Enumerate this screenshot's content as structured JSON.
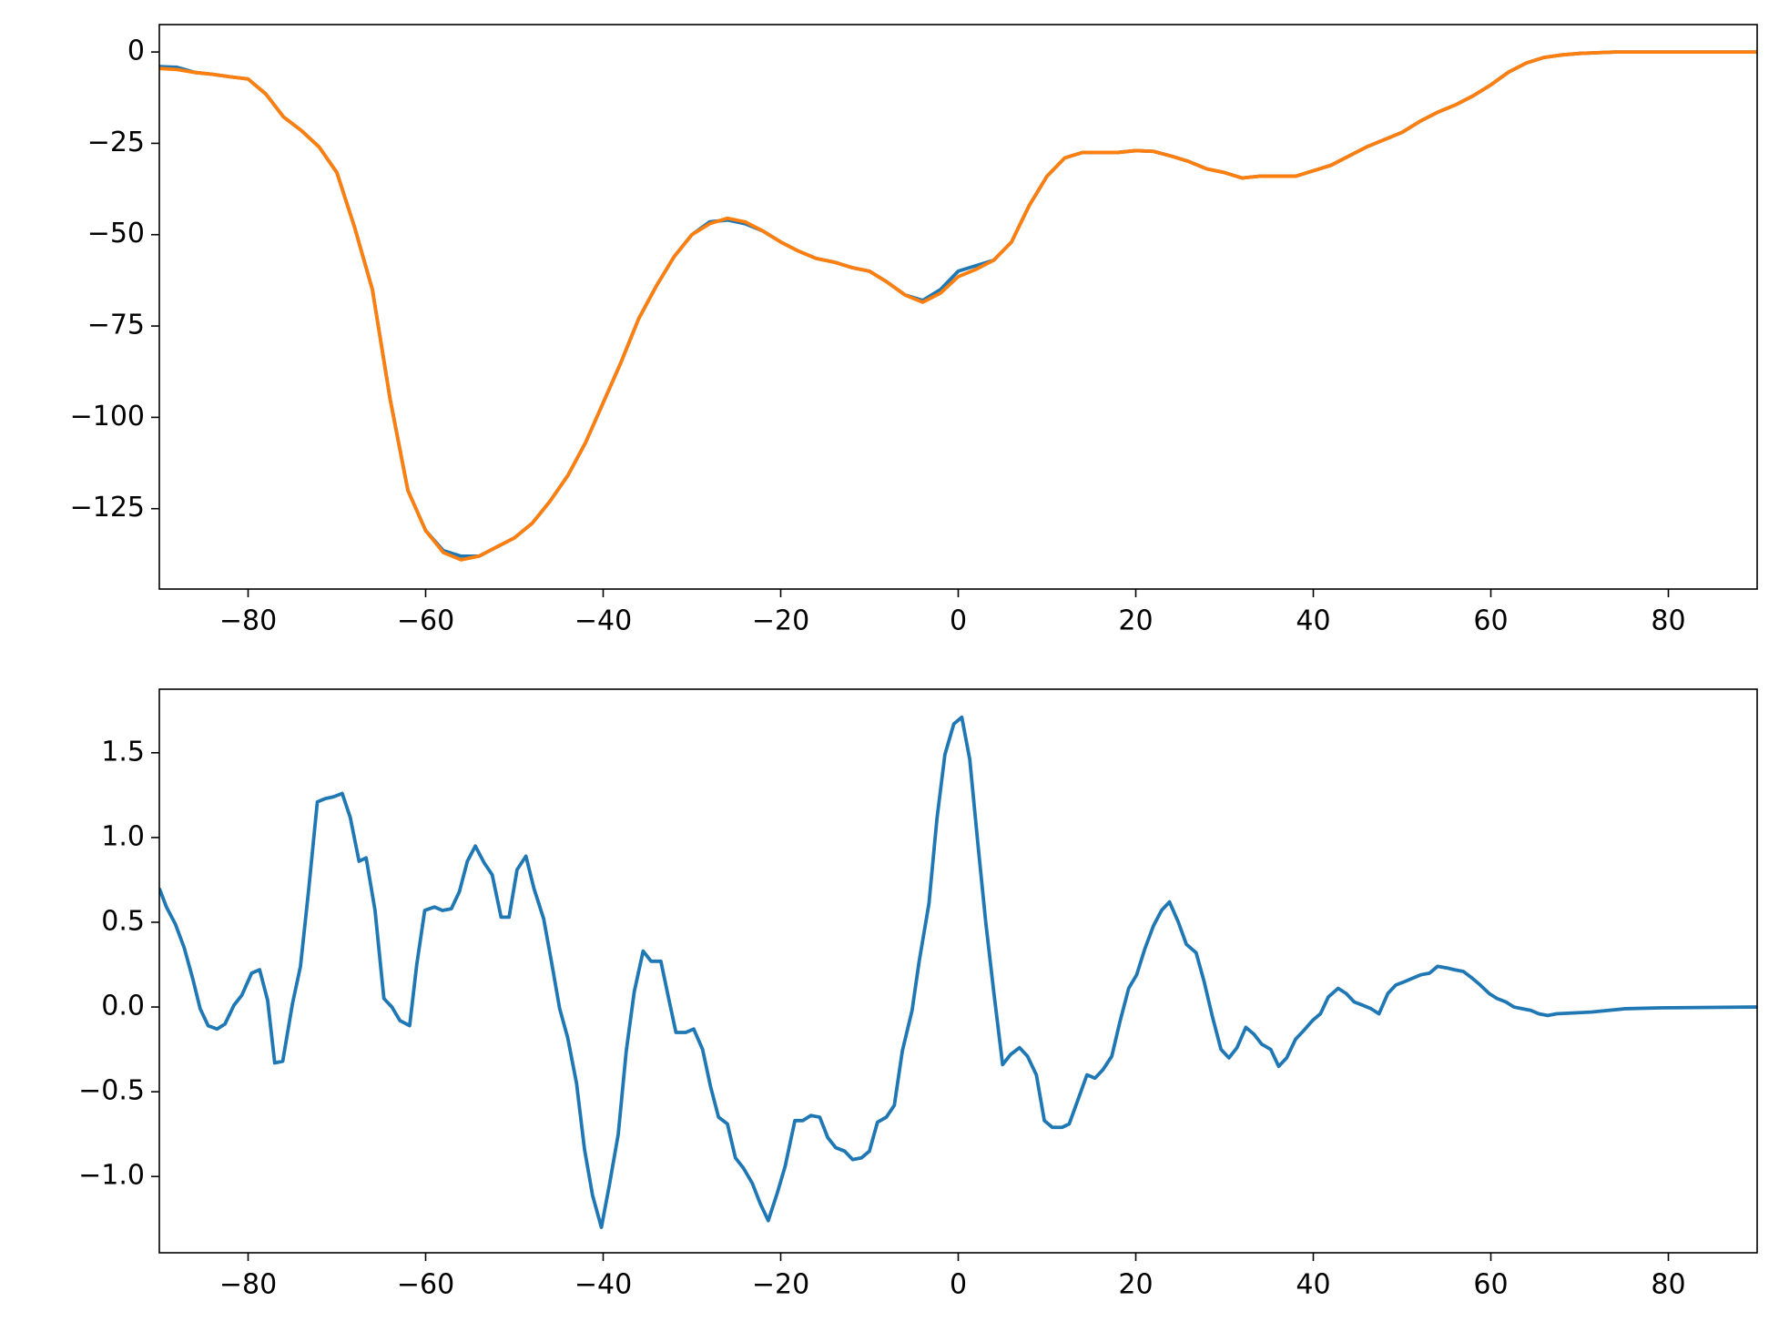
{
  "chart_data": [
    {
      "type": "line",
      "x": [
        -90,
        -88,
        -86,
        -84,
        -82,
        -80,
        -78,
        -76,
        -74,
        -72,
        -70,
        -68,
        -66,
        -64,
        -62,
        -60,
        -58,
        -56,
        -54,
        -52,
        -50,
        -48,
        -46,
        -44,
        -42,
        -40,
        -38,
        -36,
        -34,
        -32,
        -30,
        -28,
        -26,
        -24,
        -22,
        -20,
        -18,
        -16,
        -14,
        -12,
        -10,
        -8,
        -6,
        -4,
        -2,
        0,
        2,
        4,
        6,
        8,
        10,
        12,
        14,
        16,
        18,
        20,
        22,
        24,
        26,
        28,
        30,
        32,
        34,
        36,
        38,
        40,
        42,
        44,
        46,
        48,
        50,
        52,
        54,
        56,
        58,
        60,
        62,
        64,
        66,
        68,
        70,
        72,
        74,
        76,
        78,
        80,
        82,
        84,
        86,
        88,
        90
      ],
      "series": [
        {
          "color": "#1f77b4",
          "values": [
            -4,
            -4.2,
            -5.6,
            -6.1,
            -6.8,
            -7.4,
            -11.5,
            -17.8,
            -21.5,
            -26,
            -33,
            -48,
            -65,
            -95,
            -120,
            -131,
            -136.5,
            -138,
            -138,
            -135.5,
            -133,
            -129,
            -123,
            -116,
            -107,
            -96,
            -85,
            -73,
            -64,
            -56,
            -50,
            -46.5,
            -46,
            -47,
            -49,
            -52,
            -54.5,
            -56.5,
            -57.5,
            -59,
            -60,
            -63,
            -66.5,
            -68,
            -65,
            -60,
            -58.5,
            -57,
            -52,
            -42,
            -34,
            -29,
            -27.5,
            -27.5,
            -27.5,
            -27,
            -27.2,
            -28.5,
            -30,
            -32,
            -33,
            -34.5,
            -34,
            -34,
            -34,
            -32.5,
            -31,
            -28.5,
            -26,
            -24,
            -22,
            -19,
            -16.5,
            -14.5,
            -12,
            -9,
            -5.5,
            -3,
            -1.5,
            -0.8,
            -0.4,
            -0.2,
            0,
            0,
            0,
            0,
            0,
            0,
            0,
            0,
            0
          ]
        },
        {
          "color": "#ff7f0e",
          "values": [
            -4.5,
            -4.8,
            -5.6,
            -6.1,
            -6.8,
            -7.4,
            -11.5,
            -17.8,
            -21.5,
            -26,
            -33,
            -48,
            -65,
            -95,
            -120,
            -131,
            -137,
            -139,
            -138,
            -135.5,
            -133,
            -129,
            -123,
            -116,
            -107,
            -96,
            -85,
            -73,
            -64,
            -56,
            -50,
            -47,
            -45.5,
            -46.5,
            -49,
            -52,
            -54.5,
            -56.5,
            -57.5,
            -59,
            -60,
            -63,
            -66.5,
            -68.5,
            -66,
            -61.5,
            -59.5,
            -57,
            -52,
            -42,
            -34,
            -29,
            -27.5,
            -27.5,
            -27.5,
            -27,
            -27.2,
            -28.5,
            -30,
            -32,
            -33,
            -34.5,
            -34,
            -34,
            -34,
            -32.5,
            -31,
            -28.5,
            -26,
            -24,
            -22,
            -19,
            -16.5,
            -14.5,
            -12,
            -9,
            -5.5,
            -3,
            -1.5,
            -0.8,
            -0.4,
            -0.2,
            0,
            0,
            0,
            0,
            0,
            0,
            0,
            0,
            0
          ]
        }
      ],
      "xlim": [
        -90,
        90
      ],
      "xticks": [
        {
          "value": -80,
          "label": "−80"
        },
        {
          "value": -60,
          "label": "−60"
        },
        {
          "value": -40,
          "label": "−40"
        },
        {
          "value": -20,
          "label": "−20"
        },
        0,
        20,
        40,
        60,
        80
      ],
      "ylim": [
        -147,
        7.5
      ],
      "yticks": [
        {
          "value": -125,
          "label": "−125"
        },
        {
          "value": -100,
          "label": "−100"
        },
        {
          "value": -75,
          "label": "−75"
        },
        {
          "value": -50,
          "label": "−50"
        },
        {
          "value": -25,
          "label": "−25"
        },
        0
      ]
    },
    {
      "type": "line",
      "x": [
        -90,
        -89.2,
        -88.2,
        -87.2,
        -86.2,
        -85.4,
        -84.5,
        -83.5,
        -82.6,
        -81.6,
        -80.7,
        -79.6,
        -78.7,
        -77.8,
        -77.0,
        -76.1,
        -75.0,
        -74.1,
        -73.2,
        -72.2,
        -71.3,
        -70.4,
        -69.4,
        -68.5,
        -67.5,
        -66.7,
        -65.7,
        -64.7,
        -63.8,
        -62.9,
        -61.8,
        -61.0,
        -60.1,
        -59.0,
        -58.1,
        -57.1,
        -56.2,
        -55.3,
        -54.4,
        -53.4,
        -52.5,
        -51.5,
        -50.6,
        -49.7,
        -48.7,
        -47.8,
        -46.7,
        -45.8,
        -44.9,
        -44.0,
        -43.0,
        -42.1,
        -41.2,
        -40.2,
        -39.3,
        -38.3,
        -37.4,
        -36.5,
        -35.5,
        -34.6,
        -33.5,
        -32.7,
        -31.8,
        -30.7,
        -29.8,
        -28.8,
        -27.9,
        -27.0,
        -26.0,
        -25.1,
        -24.2,
        -23.2,
        -22.3,
        -21.4,
        -20.4,
        -19.5,
        -18.4,
        -17.5,
        -16.6,
        -15.6,
        -14.7,
        -13.8,
        -12.8,
        -11.9,
        -10.9,
        -10.0,
        -9.1,
        -8.1,
        -7.2,
        -6.3,
        -5.2,
        -4.4,
        -3.3,
        -2.4,
        -1.5,
        -0.5,
        0.4,
        1.3,
        2.2,
        3.1,
        4.0,
        5.0,
        5.9,
        6.9,
        7.8,
        8.8,
        9.7,
        10.6,
        11.7,
        12.5,
        13.4,
        14.5,
        15.4,
        16.3,
        17.3,
        18.2,
        19.2,
        20.1,
        21.0,
        22.0,
        22.9,
        23.8,
        24.8,
        25.7,
        26.8,
        27.7,
        28.6,
        29.6,
        30.5,
        31.4,
        32.4,
        33.3,
        34.2,
        35.2,
        36.1,
        37.0,
        38.0,
        38.9,
        39.9,
        40.8,
        41.7,
        42.8,
        43.7,
        44.6,
        45.6,
        46.5,
        47.4,
        48.4,
        49.3,
        50.3,
        51.2,
        52.1,
        53.1,
        54.0,
        55.1,
        55.9,
        56.9,
        57.9,
        58.8,
        59.8,
        60.7,
        61.7,
        62.6,
        63.5,
        64.5,
        65.4,
        66.4,
        67.4,
        71.3,
        75.2,
        79,
        90
      ],
      "series": [
        {
          "color": "#1f77b4",
          "values": [
            0.7,
            0.59,
            0.49,
            0.35,
            0.16,
            -0.01,
            -0.11,
            -0.13,
            -0.1,
            0.01,
            0.07,
            0.2,
            0.22,
            0.04,
            -0.33,
            -0.32,
            0.02,
            0.24,
            0.68,
            1.21,
            1.23,
            1.24,
            1.26,
            1.12,
            0.86,
            0.88,
            0.57,
            0.05,
            0.0,
            -0.08,
            -0.11,
            0.25,
            0.57,
            0.59,
            0.57,
            0.58,
            0.68,
            0.86,
            0.95,
            0.85,
            0.78,
            0.53,
            0.53,
            0.81,
            0.89,
            0.7,
            0.52,
            0.26,
            -0.01,
            -0.18,
            -0.45,
            -0.84,
            -1.11,
            -1.3,
            -1.05,
            -0.75,
            -0.26,
            0.09,
            0.33,
            0.27,
            0.27,
            0.07,
            -0.15,
            -0.15,
            -0.13,
            -0.25,
            -0.47,
            -0.65,
            -0.69,
            -0.89,
            -0.95,
            -1.04,
            -1.16,
            -1.26,
            -1.1,
            -0.94,
            -0.67,
            -0.67,
            -0.64,
            -0.65,
            -0.77,
            -0.83,
            -0.85,
            -0.9,
            -0.89,
            -0.85,
            -0.68,
            -0.65,
            -0.58,
            -0.26,
            -0.02,
            0.27,
            0.61,
            1.11,
            1.49,
            1.67,
            1.71,
            1.46,
            0.97,
            0.5,
            0.09,
            -0.34,
            -0.28,
            -0.24,
            -0.29,
            -0.4,
            -0.67,
            -0.71,
            -0.71,
            -0.69,
            -0.56,
            -0.4,
            -0.42,
            -0.37,
            -0.29,
            -0.09,
            0.11,
            0.19,
            0.34,
            0.48,
            0.57,
            0.62,
            0.5,
            0.37,
            0.32,
            0.15,
            -0.05,
            -0.25,
            -0.3,
            -0.24,
            -0.12,
            -0.16,
            -0.22,
            -0.25,
            -0.35,
            -0.3,
            -0.19,
            -0.14,
            -0.08,
            -0.04,
            0.06,
            0.11,
            0.08,
            0.03,
            0.01,
            -0.01,
            -0.04,
            0.08,
            0.13,
            0.15,
            0.17,
            0.19,
            0.2,
            0.24,
            0.23,
            0.22,
            0.21,
            0.17,
            0.13,
            0.08,
            0.05,
            0.03,
            0.0,
            -0.01,
            -0.02,
            -0.04,
            -0.05,
            -0.04,
            -0.03,
            -0.01,
            -0.005,
            0
          ]
        }
      ],
      "xlim": [
        -90,
        90
      ],
      "xticks": [
        {
          "value": -80,
          "label": "−80"
        },
        {
          "value": -60,
          "label": "−60"
        },
        {
          "value": -40,
          "label": "−40"
        },
        {
          "value": -20,
          "label": "−20"
        },
        0,
        20,
        40,
        60,
        80
      ],
      "ylim": [
        -1.45,
        1.875
      ],
      "yticks": [
        {
          "value": -1,
          "label": "−1.0"
        },
        {
          "value": -0.5,
          "label": "−0.5"
        },
        {
          "value": 0,
          "label": "0.0"
        },
        0.5,
        {
          "value": 1,
          "label": "1.0"
        },
        1.5
      ]
    }
  ]
}
